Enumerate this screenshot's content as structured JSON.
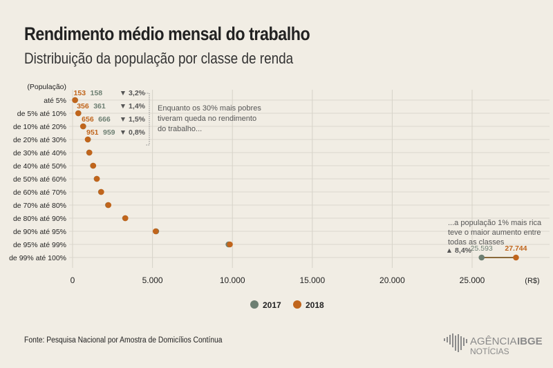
{
  "title": "Rendimento médio mensal do trabalho",
  "subtitle": "Distribuição da população por classe de renda",
  "source": "Fonte:  Pesquisa Nacional por Amostra de Domicílios Contínua",
  "logo": {
    "text1": "AGÊNCIA",
    "text2": "IBGE",
    "text3": "NOTÍCIAS"
  },
  "colors": {
    "2017": "#6d7f72",
    "2018": "#c0651c",
    "background": "#f1ede4"
  },
  "chart_data": {
    "type": "dot",
    "xlabel_unit": "(R$)",
    "ylabel": "(População)",
    "xlim": [
      0,
      30000
    ],
    "xticks": [
      0,
      5000,
      10000,
      15000,
      20000,
      25000
    ],
    "xtick_labels": [
      "0",
      "5.000",
      "10.000",
      "15.000",
      "20.000",
      "25.000"
    ],
    "grid": true,
    "legend_position": "bottom",
    "categories": [
      "até 5%",
      "de 5% até 10%",
      "de 10% até 20%",
      "de 20% até 30%",
      "de 30% até 40%",
      "de 40% até 50%",
      "de 50% até 60%",
      "de 60% até 70%",
      "de 70% até 80%",
      "de 80% até 90%",
      "de 90% até 95%",
      "de 95% até 99%",
      "de 99% até 100%"
    ],
    "series": [
      {
        "name": "2017",
        "values": [
          158,
          361,
          666,
          959,
          1040,
          1280,
          1510,
          1780,
          2220,
          3290,
          5230,
          9760,
          25593
        ]
      },
      {
        "name": "2018",
        "values": [
          153,
          356,
          656,
          951,
          1050,
          1290,
          1520,
          1790,
          2240,
          3300,
          5200,
          9840,
          27744
        ]
      }
    ],
    "data_labels": [
      {
        "row": 0,
        "v2018": "153",
        "v2017": "158",
        "change": "▼ 3,2%"
      },
      {
        "row": 1,
        "v2018": "356",
        "v2017": "361",
        "change": "▼ 1,4%"
      },
      {
        "row": 2,
        "v2018": "656",
        "v2017": "666",
        "change": "▼ 1,5%"
      },
      {
        "row": 3,
        "v2018": "951",
        "v2017": "959",
        "change": "▼ 0,8%"
      },
      {
        "row": 12,
        "v2018": "27.744",
        "v2017": "25.593",
        "change": "▲ 8,4%"
      }
    ],
    "annotations": [
      "Enquanto os 30% mais pobres",
      "tiveram queda no rendimento",
      "do trabalho...",
      "...a população 1% mais rica",
      "teve o maior aumento entre",
      "todas as classes"
    ]
  }
}
